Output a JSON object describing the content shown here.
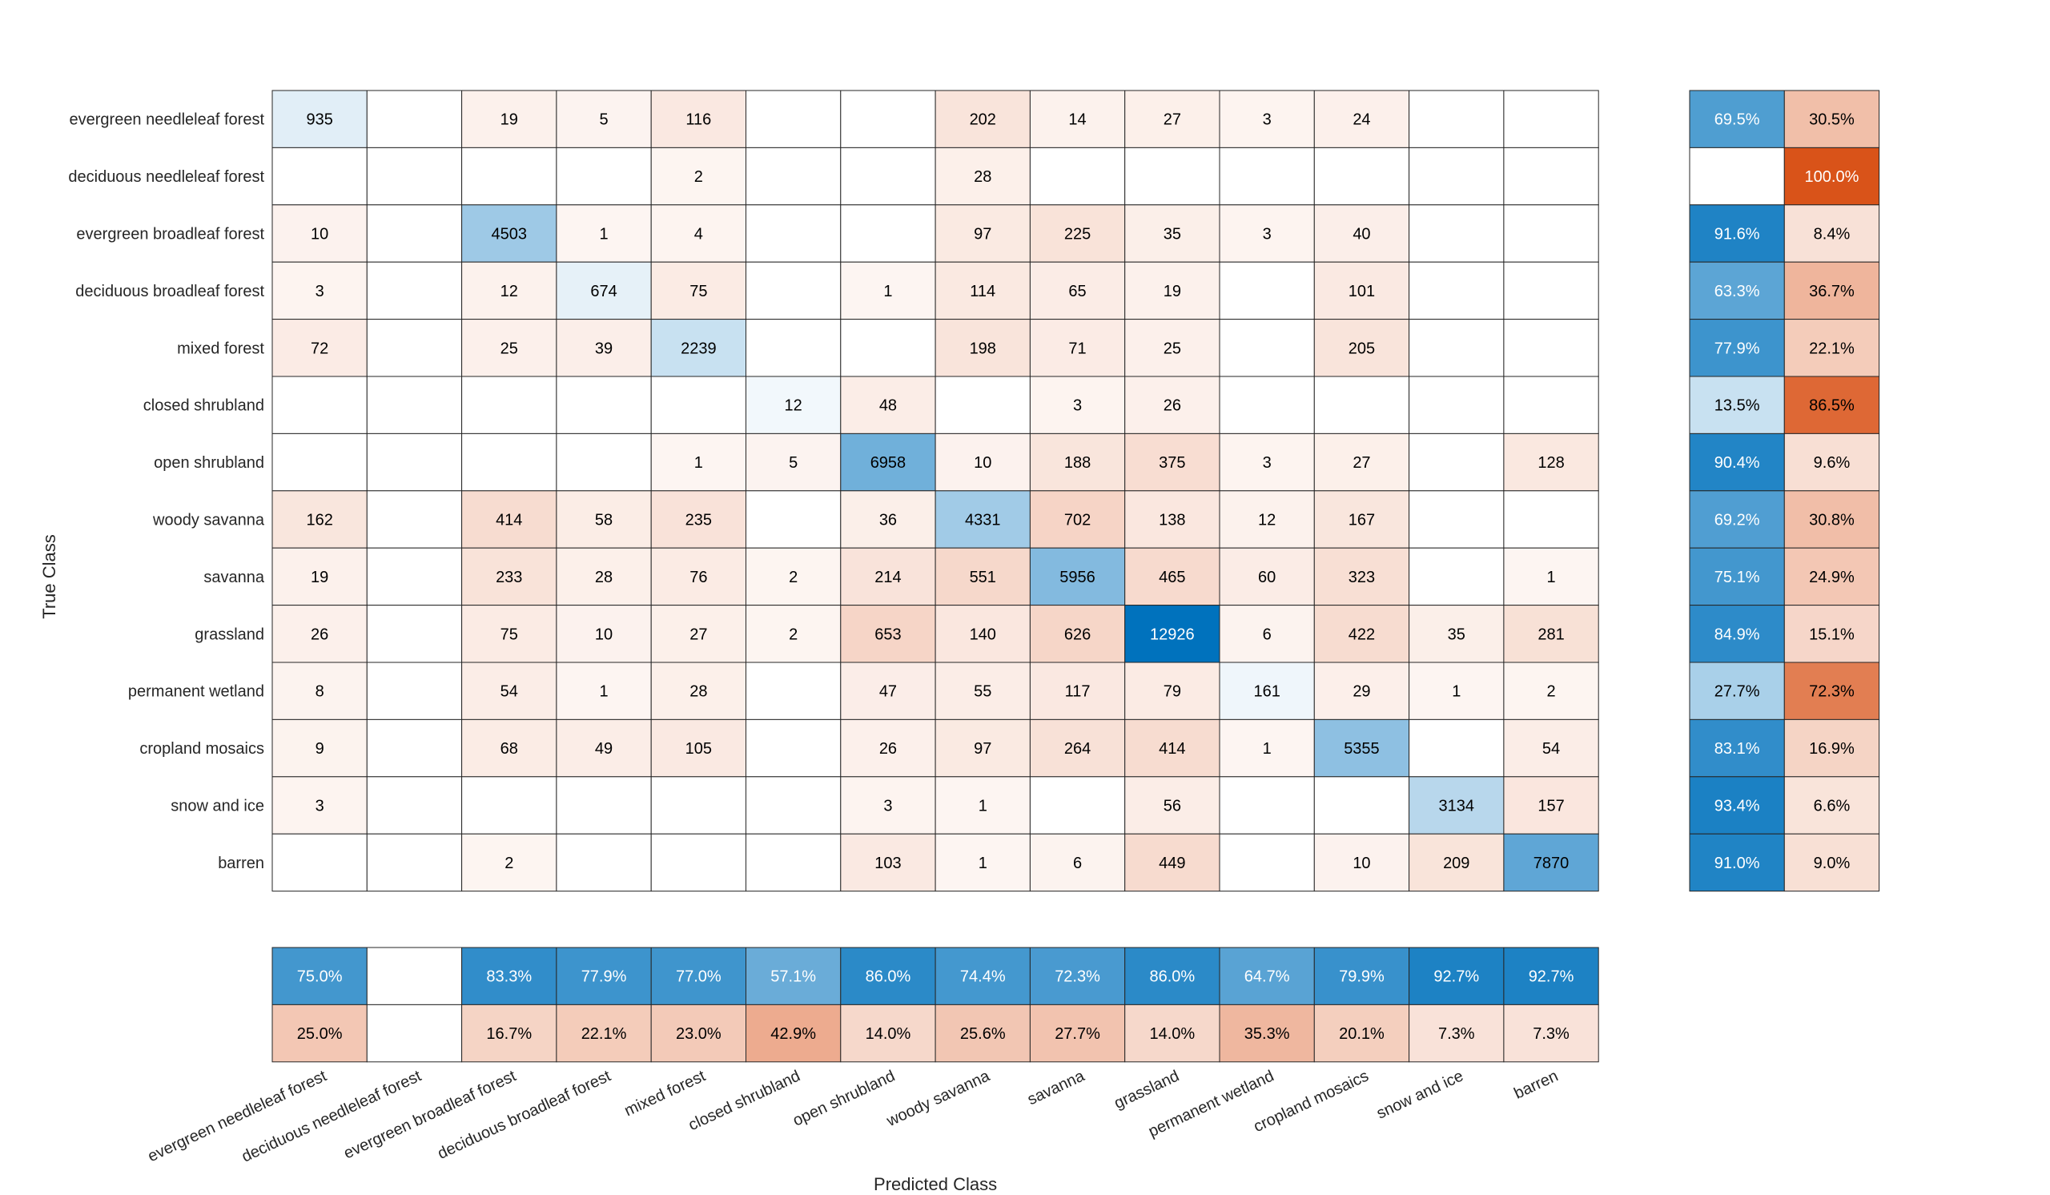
{
  "chart_data": {
    "type": "heatmap",
    "subtype": "confusion-matrix",
    "xlabel": "Predicted Class",
    "ylabel": "True Class",
    "classes": [
      "evergreen needleleaf forest",
      "deciduous needleleaf forest",
      "evergreen broadleaf forest",
      "deciduous broadleaf forest",
      "mixed forest",
      "closed shrubland",
      "open shrubland",
      "woody savanna",
      "savanna",
      "grassland",
      "permanent wetland",
      "cropland mosaics",
      "snow and ice",
      "barren"
    ],
    "matrix": [
      [
        935,
        null,
        19,
        5,
        116,
        null,
        null,
        202,
        14,
        27,
        3,
        24,
        null,
        null
      ],
      [
        null,
        null,
        null,
        null,
        2,
        null,
        null,
        28,
        null,
        null,
        null,
        null,
        null,
        null
      ],
      [
        10,
        null,
        4503,
        1,
        4,
        null,
        null,
        97,
        225,
        35,
        3,
        40,
        null,
        null
      ],
      [
        3,
        null,
        12,
        674,
        75,
        null,
        1,
        114,
        65,
        19,
        null,
        101,
        null,
        null
      ],
      [
        72,
        null,
        25,
        39,
        2239,
        null,
        null,
        198,
        71,
        25,
        null,
        205,
        null,
        null
      ],
      [
        null,
        null,
        null,
        null,
        null,
        12,
        48,
        null,
        3,
        26,
        null,
        null,
        null,
        null
      ],
      [
        null,
        null,
        null,
        null,
        1,
        5,
        6958,
        10,
        188,
        375,
        3,
        27,
        null,
        128
      ],
      [
        162,
        null,
        414,
        58,
        235,
        null,
        36,
        4331,
        702,
        138,
        12,
        167,
        null,
        null
      ],
      [
        19,
        null,
        233,
        28,
        76,
        2,
        214,
        551,
        5956,
        465,
        60,
        323,
        null,
        1
      ],
      [
        26,
        null,
        75,
        10,
        27,
        2,
        653,
        140,
        626,
        12926,
        6,
        422,
        35,
        281
      ],
      [
        8,
        null,
        54,
        1,
        28,
        null,
        47,
        55,
        117,
        79,
        161,
        29,
        1,
        2
      ],
      [
        9,
        null,
        68,
        49,
        105,
        null,
        26,
        97,
        264,
        414,
        1,
        5355,
        null,
        54
      ],
      [
        3,
        null,
        null,
        null,
        null,
        null,
        3,
        1,
        null,
        56,
        null,
        null,
        3134,
        157
      ],
      [
        null,
        null,
        2,
        null,
        null,
        null,
        103,
        1,
        6,
        449,
        null,
        10,
        209,
        7870
      ]
    ],
    "row_summary": {
      "correct": [
        "69.5%",
        null,
        "91.6%",
        "63.3%",
        "77.9%",
        "13.5%",
        "90.4%",
        "69.2%",
        "75.1%",
        "84.9%",
        "27.7%",
        "83.1%",
        "93.4%",
        "91.0%"
      ],
      "incorrect": [
        "30.5%",
        "100.0%",
        "8.4%",
        "36.7%",
        "22.1%",
        "86.5%",
        "9.6%",
        "30.8%",
        "24.9%",
        "15.1%",
        "72.3%",
        "16.9%",
        "6.6%",
        "9.0%"
      ]
    },
    "column_summary": {
      "correct": [
        "75.0%",
        null,
        "83.3%",
        "77.9%",
        "77.0%",
        "57.1%",
        "86.0%",
        "74.4%",
        "72.3%",
        "86.0%",
        "64.7%",
        "79.9%",
        "92.7%",
        "92.7%"
      ],
      "incorrect": [
        "25.0%",
        null,
        "16.7%",
        "22.1%",
        "23.0%",
        "42.9%",
        "14.0%",
        "25.6%",
        "27.7%",
        "14.0%",
        "35.3%",
        "20.1%",
        "7.3%",
        "7.3%"
      ]
    },
    "colors": {
      "correct": "#0072bd",
      "incorrect": "#d95319",
      "grid": "#262626",
      "text_dark": "#000000",
      "text_light": "#ffffff"
    }
  }
}
